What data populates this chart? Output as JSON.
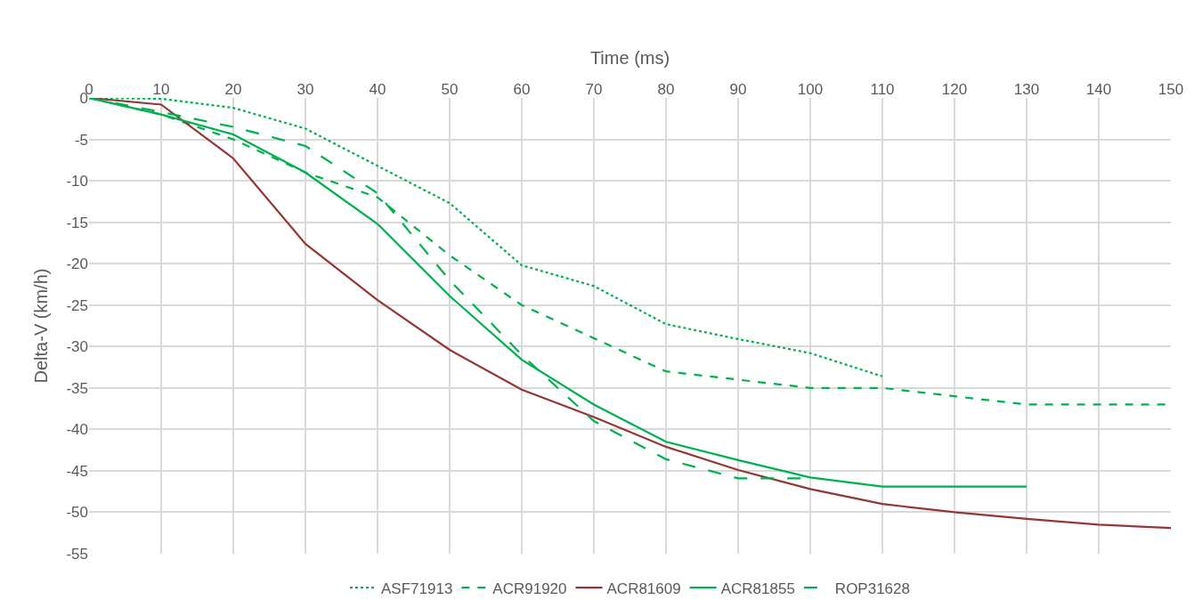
{
  "chart_data": {
    "type": "line",
    "xlabel": "Time (ms)",
    "ylabel": "Delta-V (km/h)",
    "x": [
      0,
      10,
      20,
      30,
      40,
      50,
      60,
      70,
      80,
      90,
      100,
      110,
      120,
      130,
      140,
      150
    ],
    "series": [
      {
        "name": "ASF71913",
        "color": "#00b050",
        "line_style": "dotted",
        "values": [
          0,
          -0.1,
          -1.2,
          -3.7,
          -8.2,
          -12.7,
          -20.2,
          -22.7,
          -27.3,
          -29.1,
          -30.8,
          -33.6,
          null,
          null,
          null,
          null
        ]
      },
      {
        "name": "ACR91920",
        "color": "#00b050",
        "line_style": "dashed",
        "values": [
          0,
          -2,
          -5,
          -9,
          -12,
          -19,
          -25,
          -29,
          -33,
          -34,
          -35,
          -35,
          -36,
          -37,
          -37,
          -37
        ]
      },
      {
        "name": "ACR81609",
        "color": "#943634",
        "line_style": "solid",
        "values": [
          0,
          -0.8,
          -7.3,
          -17.6,
          -24.4,
          -30.4,
          -35.2,
          -38.5,
          -42.1,
          -44.9,
          -47.2,
          -49,
          -50,
          -50.8,
          -51.5,
          -51.9
        ]
      },
      {
        "name": "ACR81855",
        "color": "#00b050",
        "line_style": "solid",
        "values": [
          0,
          -2,
          -4.4,
          -9,
          -15.2,
          -23.9,
          -31.6,
          -37,
          -41.5,
          -43.7,
          -45.8,
          -46.9,
          -46.9,
          -46.9,
          null,
          null
        ]
      },
      {
        "name": "ROP31628",
        "color": "#00b050",
        "line_style": "longdash",
        "values": [
          0,
          -1.7,
          -3.5,
          -5.8,
          -11.5,
          -22,
          -31,
          -39,
          -43.6,
          -45.9,
          -45.9,
          null,
          null,
          null,
          null,
          null
        ]
      }
    ],
    "xlim": [
      0,
      150
    ],
    "xticks": [
      0,
      10,
      20,
      30,
      40,
      50,
      60,
      70,
      80,
      90,
      100,
      110,
      120,
      130,
      140,
      150
    ],
    "ylim": [
      -55,
      0
    ],
    "yticks": [
      0,
      -5,
      -10,
      -15,
      -20,
      -25,
      -30,
      -35,
      -40,
      -45,
      -50,
      -55
    ],
    "grid": true,
    "legend": "bottom",
    "marker": "none"
  }
}
